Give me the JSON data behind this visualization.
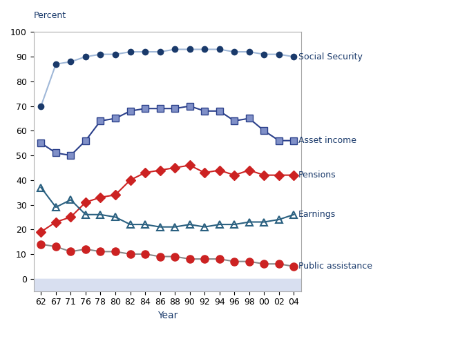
{
  "years": [
    62,
    67,
    71,
    76,
    78,
    80,
    82,
    84,
    86,
    88,
    90,
    92,
    94,
    96,
    98,
    0,
    2,
    4
  ],
  "year_labels": [
    "62",
    "67",
    "71",
    "76",
    "78",
    "80",
    "82",
    "84",
    "86",
    "88",
    "90",
    "92",
    "94",
    "96",
    "98",
    "00",
    "02",
    "04"
  ],
  "social_security": [
    70,
    87,
    88,
    90,
    91,
    91,
    92,
    92,
    92,
    93,
    93,
    93,
    93,
    92,
    92,
    91,
    91,
    90
  ],
  "asset_income": [
    55,
    51,
    50,
    56,
    64,
    65,
    68,
    69,
    69,
    69,
    70,
    68,
    68,
    64,
    65,
    60,
    56,
    56
  ],
  "pensions": [
    19,
    23,
    25,
    31,
    33,
    34,
    40,
    43,
    44,
    45,
    46,
    43,
    44,
    42,
    44,
    42,
    42,
    42
  ],
  "earnings": [
    37,
    29,
    32,
    26,
    26,
    25,
    22,
    22,
    21,
    21,
    22,
    21,
    22,
    22,
    23,
    23,
    24,
    26
  ],
  "public_assistance": [
    14,
    13,
    11,
    12,
    11,
    11,
    10,
    10,
    9,
    9,
    8,
    8,
    8,
    7,
    7,
    6,
    6,
    5
  ],
  "colors": {
    "social_security": "#1a3a6b",
    "asset_income": "#7b8fc7",
    "pensions": "#cc2222",
    "earnings": "#2a6080",
    "public_assistance": "#cc2222"
  },
  "line_colors": {
    "social_security": "#a0b8d8",
    "asset_income": "#2a3f8a",
    "pensions": "#cc2222",
    "earnings": "#2a6080",
    "public_assistance": "#888888"
  },
  "title_percent": "Percent",
  "xlabel": "Year",
  "ylim": [
    0,
    100
  ],
  "background_plot": "#ffffff",
  "background_xaxis": "#d8dff0",
  "label_social_security": "Social Security",
  "label_asset_income": "Asset income",
  "label_pensions": "Pensions",
  "label_earnings": "Earnings",
  "label_public_assistance": "Public assistance"
}
